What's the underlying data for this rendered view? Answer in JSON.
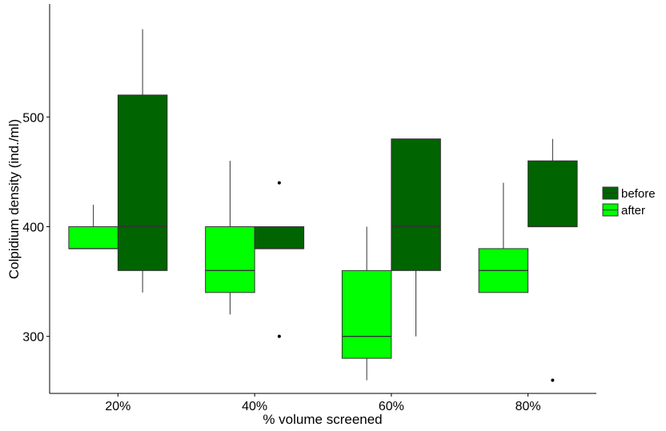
{
  "chart_data": {
    "type": "boxplot",
    "title": "",
    "xlabel": "% volume screened",
    "ylabel": "Colpidium density (ind./ml)",
    "categories": [
      "20%",
      "40%",
      "60%",
      "80%"
    ],
    "ylim": [
      248,
      603
    ],
    "yticks": [
      300,
      400,
      500
    ],
    "grid": false,
    "legend_position": "right",
    "series": [
      {
        "name": "after",
        "color": "#00ff00",
        "boxes": [
          {
            "category": "20%",
            "whisker_low": 380,
            "q1": 380,
            "median": 380,
            "q3": 400,
            "whisker_high": 420,
            "outliers": []
          },
          {
            "category": "40%",
            "whisker_low": 320,
            "q1": 340,
            "median": 360,
            "q3": 400,
            "whisker_high": 460,
            "outliers": []
          },
          {
            "category": "60%",
            "whisker_low": 260,
            "q1": 280,
            "median": 300,
            "q3": 360,
            "whisker_high": 400,
            "outliers": []
          },
          {
            "category": "80%",
            "whisker_low": 340,
            "q1": 340,
            "median": 360,
            "q3": 380,
            "whisker_high": 440,
            "outliers": []
          }
        ]
      },
      {
        "name": "before",
        "color": "#006400",
        "boxes": [
          {
            "category": "20%",
            "whisker_low": 340,
            "q1": 360,
            "median": 400,
            "q3": 520,
            "whisker_high": 580,
            "outliers": []
          },
          {
            "category": "40%",
            "whisker_low": 380,
            "q1": 380,
            "median": 380,
            "q3": 400,
            "whisker_high": 400,
            "outliers": [
              440,
              300
            ]
          },
          {
            "category": "60%",
            "whisker_low": 300,
            "q1": 360,
            "median": 400,
            "q3": 480,
            "whisker_high": 480,
            "outliers": []
          },
          {
            "category": "80%",
            "whisker_low": 400,
            "q1": 400,
            "median": 400,
            "q3": 460,
            "whisker_high": 480,
            "outliers": [
              260
            ]
          }
        ]
      }
    ],
    "legend": [
      {
        "label": "before",
        "color": "#006400"
      },
      {
        "label": "after",
        "color": "#00ff00"
      }
    ]
  }
}
